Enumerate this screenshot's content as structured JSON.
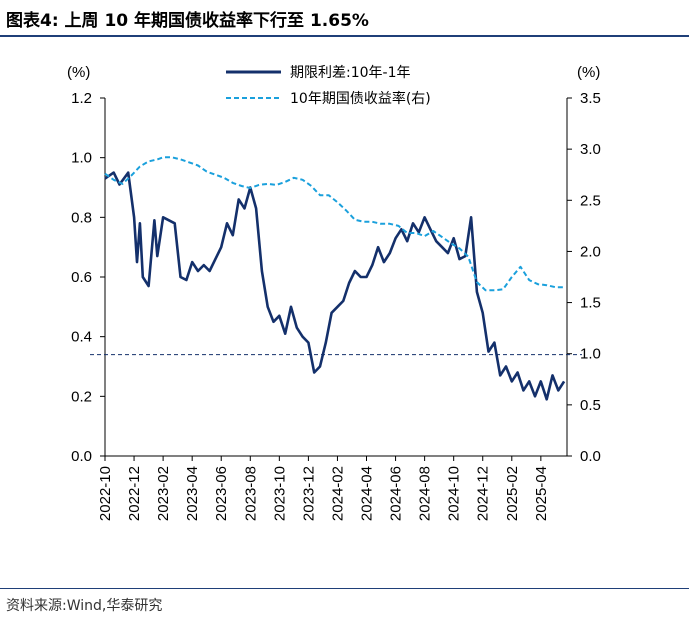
{
  "header": {
    "title": "图表4:  上周 10 年期国债收益率下行至 1.65%"
  },
  "footer": {
    "source": "资料来源:Wind,华泰研究"
  },
  "colors": {
    "spread": "#14306b",
    "yield": "#1aa0dc",
    "reference": "#14306b",
    "axis": "#000000"
  },
  "chart_data": {
    "type": "line",
    "left_unit": "(%)",
    "right_unit": "(%)",
    "ylim_left": [
      0.0,
      1.2
    ],
    "ylim_right": [
      0.0,
      3.5
    ],
    "left_ticks": [
      "0.0",
      "0.2",
      "0.4",
      "0.6",
      "0.8",
      "1.0",
      "1.2"
    ],
    "right_ticks": [
      "0.0",
      "0.5",
      "1.0",
      "1.5",
      "2.0",
      "2.5",
      "3.0",
      "3.5"
    ],
    "x_ticks": [
      "2022-10",
      "2022-12",
      "2023-02",
      "2023-04",
      "2023-06",
      "2023-08",
      "2023-10",
      "2023-12",
      "2024-02",
      "2024-04",
      "2024-06",
      "2024-08",
      "2024-10",
      "2024-12",
      "2025-02",
      "2025-04"
    ],
    "xlim_months": [
      0,
      15.9
    ],
    "reference_line": {
      "axis": "left",
      "value": 0.34
    },
    "series": [
      {
        "name": "期限利差:10年-1年",
        "axis": "left",
        "style": "solid",
        "x": [
          0,
          0.3,
          0.5,
          0.8,
          1.0,
          1.1,
          1.2,
          1.3,
          1.5,
          1.7,
          1.8,
          2.0,
          2.2,
          2.4,
          2.6,
          2.8,
          3.0,
          3.2,
          3.4,
          3.6,
          3.8,
          4.0,
          4.2,
          4.4,
          4.6,
          4.8,
          5.0,
          5.2,
          5.4,
          5.6,
          5.8,
          6.0,
          6.2,
          6.4,
          6.6,
          6.8,
          7.0,
          7.2,
          7.4,
          7.6,
          7.8,
          8.0,
          8.2,
          8.4,
          8.6,
          8.8,
          9.0,
          9.2,
          9.4,
          9.6,
          9.8,
          10.0,
          10.2,
          10.4,
          10.6,
          10.8,
          11.0,
          11.2,
          11.4,
          11.6,
          11.8,
          12.0,
          12.2,
          12.4,
          12.6,
          12.8,
          13.0,
          13.2,
          13.4,
          13.6,
          13.8,
          14.0,
          14.2,
          14.4,
          14.6,
          14.8,
          15.0,
          15.2,
          15.4,
          15.6,
          15.8
        ],
        "values": [
          0.93,
          0.95,
          0.91,
          0.95,
          0.8,
          0.65,
          0.78,
          0.6,
          0.57,
          0.79,
          0.67,
          0.8,
          0.79,
          0.78,
          0.6,
          0.59,
          0.65,
          0.62,
          0.64,
          0.62,
          0.66,
          0.7,
          0.78,
          0.74,
          0.86,
          0.83,
          0.9,
          0.83,
          0.62,
          0.5,
          0.45,
          0.47,
          0.41,
          0.5,
          0.43,
          0.4,
          0.38,
          0.28,
          0.3,
          0.38,
          0.48,
          0.5,
          0.52,
          0.58,
          0.62,
          0.6,
          0.6,
          0.64,
          0.7,
          0.65,
          0.68,
          0.73,
          0.76,
          0.72,
          0.78,
          0.75,
          0.8,
          0.76,
          0.72,
          0.7,
          0.68,
          0.73,
          0.66,
          0.67,
          0.8,
          0.55,
          0.48,
          0.35,
          0.38,
          0.27,
          0.3,
          0.25,
          0.28,
          0.22,
          0.25,
          0.2,
          0.25,
          0.19,
          0.27,
          0.22,
          0.25
        ]
      },
      {
        "name": "10年期国债收益率(右)",
        "axis": "right",
        "style": "dashed",
        "x": [
          0,
          0.3,
          0.6,
          0.9,
          1.2,
          1.5,
          1.8,
          2.0,
          2.3,
          2.6,
          2.9,
          3.2,
          3.5,
          3.8,
          4.1,
          4.4,
          4.7,
          5.0,
          5.3,
          5.6,
          5.9,
          6.2,
          6.5,
          6.8,
          7.1,
          7.4,
          7.7,
          8.0,
          8.3,
          8.6,
          8.9,
          9.2,
          9.5,
          9.8,
          10.1,
          10.4,
          10.7,
          11.0,
          11.3,
          11.6,
          11.9,
          12.2,
          12.5,
          12.8,
          13.1,
          13.4,
          13.7,
          14.0,
          14.3,
          14.6,
          14.9,
          15.2,
          15.5,
          15.8
        ],
        "values": [
          2.76,
          2.7,
          2.66,
          2.74,
          2.83,
          2.88,
          2.9,
          2.92,
          2.92,
          2.9,
          2.87,
          2.84,
          2.78,
          2.75,
          2.72,
          2.67,
          2.64,
          2.62,
          2.65,
          2.66,
          2.65,
          2.68,
          2.72,
          2.7,
          2.64,
          2.55,
          2.55,
          2.48,
          2.4,
          2.31,
          2.29,
          2.29,
          2.27,
          2.27,
          2.25,
          2.18,
          2.18,
          2.15,
          2.2,
          2.14,
          2.08,
          2.03,
          1.95,
          1.7,
          1.62,
          1.62,
          1.63,
          1.75,
          1.85,
          1.72,
          1.68,
          1.67,
          1.65,
          1.65
        ]
      }
    ]
  }
}
